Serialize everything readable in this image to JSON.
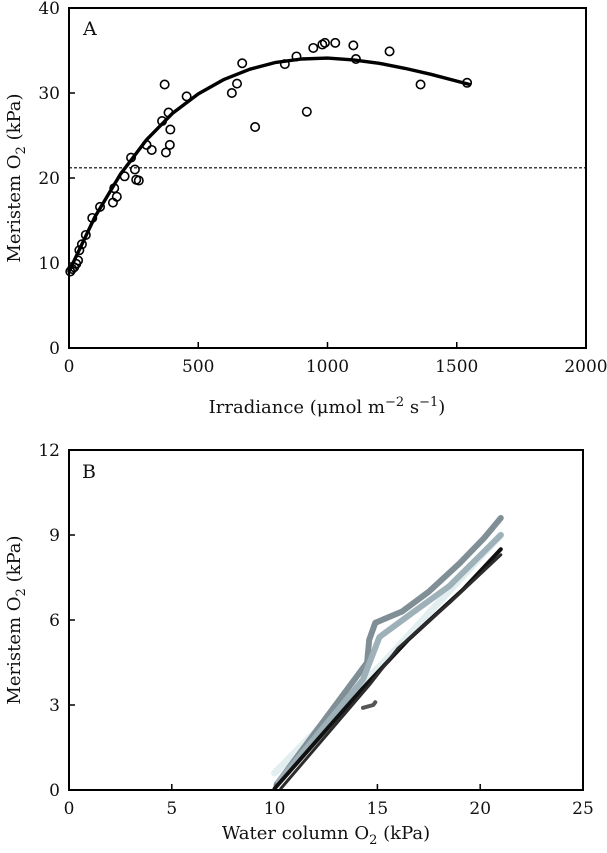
{
  "chart_data": [
    {
      "panel": "A",
      "type": "scatter",
      "xlabel_main": "Irradiance (μmol m",
      "xlabel_sup1": "−2",
      "xlabel_mid": " s",
      "xlabel_sup2": "−1",
      "xlabel_end": ")",
      "ylabel_main": "Meristem O",
      "ylabel_sub": "2",
      "ylabel_end": " (kPa)",
      "xlim": [
        0,
        2000
      ],
      "ylim": [
        0,
        40
      ],
      "xticks": [
        "0",
        "500",
        "1000",
        "1500",
        "2000"
      ],
      "yticks": [
        "0",
        "10",
        "20",
        "30",
        "40"
      ],
      "points": [
        [
          5,
          9
        ],
        [
          12,
          9.3
        ],
        [
          20,
          9.5
        ],
        [
          28,
          9.9
        ],
        [
          35,
          10.3
        ],
        [
          40,
          11.5
        ],
        [
          50,
          12.2
        ],
        [
          65,
          13.3
        ],
        [
          90,
          15.3
        ],
        [
          120,
          16.6
        ],
        [
          170,
          17.1
        ],
        [
          175,
          18.8
        ],
        [
          185,
          17.8
        ],
        [
          215,
          20.2
        ],
        [
          240,
          22.4
        ],
        [
          255,
          21
        ],
        [
          260,
          19.8
        ],
        [
          270,
          19.7
        ],
        [
          300,
          23.9
        ],
        [
          320,
          23.3
        ],
        [
          360,
          26.7
        ],
        [
          370,
          31
        ],
        [
          375,
          23
        ],
        [
          385,
          27.7
        ],
        [
          390,
          23.9
        ],
        [
          392,
          25.7
        ],
        [
          455,
          29.6
        ],
        [
          630,
          30
        ],
        [
          650,
          31.1
        ],
        [
          670,
          33.5
        ],
        [
          720,
          26
        ],
        [
          835,
          33.4
        ],
        [
          880,
          34.3
        ],
        [
          920,
          27.8
        ],
        [
          945,
          35.3
        ],
        [
          980,
          35.7
        ],
        [
          990,
          35.9
        ],
        [
          1030,
          35.9
        ],
        [
          1100,
          35.6
        ],
        [
          1110,
          34
        ],
        [
          1240,
          34.9
        ],
        [
          1360,
          31
        ],
        [
          1540,
          31.2
        ]
      ],
      "fit_curve": [
        [
          0,
          9
        ],
        [
          100,
          15.4
        ],
        [
          200,
          20.5
        ],
        [
          300,
          24.5
        ],
        [
          400,
          27.6
        ],
        [
          500,
          29.9
        ],
        [
          600,
          31.6
        ],
        [
          700,
          32.8
        ],
        [
          800,
          33.6
        ],
        [
          900,
          34
        ],
        [
          1000,
          34.1
        ],
        [
          1100,
          33.9
        ],
        [
          1200,
          33.5
        ],
        [
          1300,
          32.9
        ],
        [
          1400,
          32.2
        ],
        [
          1500,
          31.4
        ],
        [
          1550,
          31
        ]
      ],
      "reference_line_y": 21.2
    },
    {
      "panel": "B",
      "type": "line",
      "xlabel_main": "Water column O",
      "xlabel_sub": "2",
      "xlabel_end": " (kPa)",
      "ylabel_main": "Meristem O",
      "ylabel_sub": "2",
      "ylabel_end": " (kPa)",
      "xlim": [
        0,
        25
      ],
      "ylim": [
        0,
        12
      ],
      "xticks": [
        "0",
        "5",
        "10",
        "15",
        "20",
        "25"
      ],
      "yticks": [
        "0",
        "3",
        "6",
        "9",
        "12"
      ],
      "series": [
        {
          "color": "#e3eef1",
          "width": 7,
          "points": [
            [
              10,
              0.6
            ],
            [
              14.2,
              3.7
            ],
            [
              15.3,
              4.5
            ],
            [
              21,
              9
            ]
          ]
        },
        {
          "color": "#808f96",
          "width": 6,
          "points": [
            [
              10.1,
              0.2
            ],
            [
              14.5,
              4.5
            ],
            [
              14.6,
              5.3
            ],
            [
              14.9,
              5.9
            ],
            [
              16.2,
              6.3
            ],
            [
              17.5,
              7.0
            ],
            [
              19,
              8.0
            ],
            [
              20.2,
              8.9
            ],
            [
              21,
              9.6
            ]
          ]
        },
        {
          "color": "#9eb1b8",
          "width": 6,
          "points": [
            [
              10.2,
              0.3
            ],
            [
              14.3,
              3.9
            ],
            [
              15.1,
              5.4
            ],
            [
              16.6,
              6.2
            ],
            [
              18.5,
              7.2
            ],
            [
              21,
              9.0
            ]
          ]
        },
        {
          "color": "#111111",
          "width": 4,
          "points": [
            [
              10,
              0.05
            ],
            [
              14.3,
              3.6
            ],
            [
              16.5,
              5.3
            ],
            [
              18,
              6.3
            ],
            [
              19.2,
              7.1
            ],
            [
              21,
              8.5
            ]
          ]
        },
        {
          "color": "#2c2c2c",
          "width": 3,
          "points": [
            [
              10.3,
              0.05
            ],
            [
              14.6,
              3.7
            ],
            [
              16,
              5.0
            ],
            [
              18.5,
              6.6
            ],
            [
              21,
              8.3
            ]
          ]
        },
        {
          "color": "#555555",
          "width": 4,
          "points": [
            [
              14.3,
              2.9
            ],
            [
              14.8,
              3.0
            ],
            [
              14.9,
              3.1
            ]
          ]
        }
      ]
    }
  ]
}
